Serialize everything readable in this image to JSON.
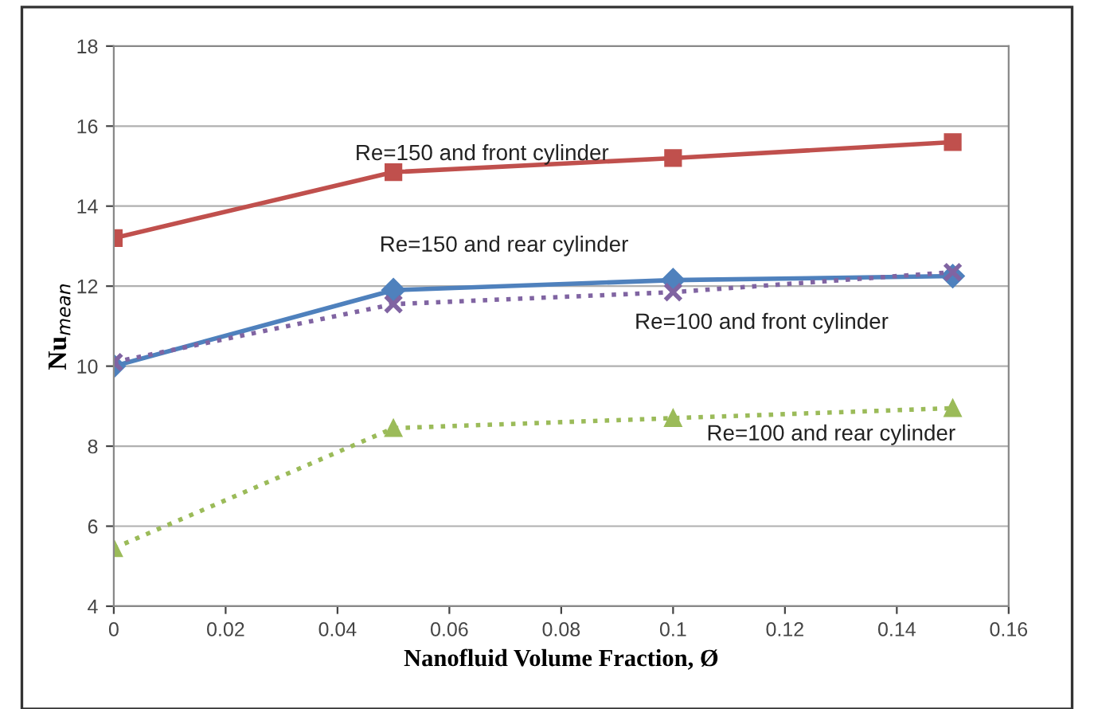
{
  "chart_data": {
    "type": "line",
    "xlabel": "Nanofluid Volume Fraction, Ø",
    "ylabel": "Nu$_{mean}$",
    "x": [
      0,
      0.05,
      0.1,
      0.15
    ],
    "series": [
      {
        "name": "Re=150 and front cylinder",
        "color": "#c0504d",
        "marker": "square",
        "line_style": "solid",
        "values": [
          13.2,
          14.85,
          15.2,
          15.6
        ]
      },
      {
        "name": "Re=150 and rear cylinder",
        "color": "#4f81bd",
        "marker": "diamond",
        "line_style": "solid",
        "values": [
          10.0,
          11.9,
          12.15,
          12.25
        ]
      },
      {
        "name": "Re=100 and front cylinder",
        "color": "#8064a2",
        "marker": "cross",
        "line_style": "dotted",
        "values": [
          10.1,
          11.55,
          11.85,
          12.35
        ]
      },
      {
        "name": "Re=100 and rear cylinder",
        "color": "#9bbb59",
        "marker": "triangle",
        "line_style": "dotted",
        "values": [
          5.45,
          8.45,
          8.7,
          8.95
        ]
      }
    ],
    "xlim": [
      0,
      0.16
    ],
    "xticks": [
      0,
      0.02,
      0.04,
      0.06,
      0.08,
      0.1,
      0.12,
      0.14,
      0.16
    ],
    "ylim": [
      4,
      18
    ],
    "yticks": [
      4,
      6,
      8,
      10,
      12,
      14,
      16,
      18
    ],
    "grid": "y",
    "legend": false
  }
}
